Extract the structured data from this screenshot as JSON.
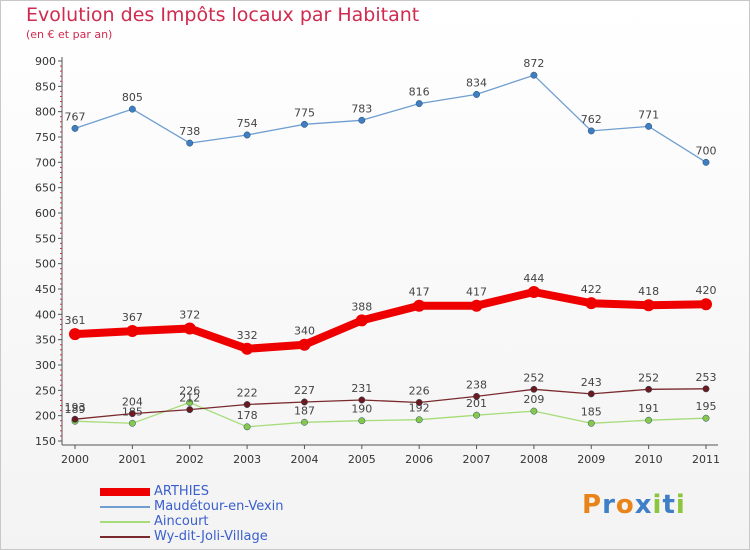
{
  "header": {
    "title": "Evolution des Impôts locaux par Habitant",
    "subtitle": "(en € et par an)"
  },
  "logo": {
    "letters": [
      "P",
      "r",
      "o",
      "x",
      "i",
      "t",
      "i"
    ],
    "colors": [
      "#e8841a",
      "#3f7fc8",
      "#e8841a",
      "#3f7fc8",
      "#8cc63f",
      "#3f7fc8",
      "#8cc63f"
    ]
  },
  "chart_data": {
    "type": "line",
    "title": "Evolution des Impôts locaux par Habitant",
    "subtitle": "(en € et par an)",
    "x": [
      "2000",
      "2001",
      "2002",
      "2003",
      "2004",
      "2005",
      "2006",
      "2007",
      "2008",
      "2009",
      "2010",
      "2011"
    ],
    "yticks": [
      150,
      200,
      250,
      300,
      350,
      400,
      450,
      500,
      550,
      600,
      650,
      700,
      750,
      800,
      850,
      900
    ],
    "ylim": [
      150,
      900
    ],
    "grid": false,
    "legend_position": "bottom-left",
    "series": [
      {
        "name": "ARTHIES",
        "values": [
          361,
          367,
          372,
          332,
          340,
          388,
          417,
          417,
          444,
          422,
          418,
          420
        ],
        "labels": [
          "361",
          "367",
          "372",
          "332",
          "340",
          "388",
          "417",
          "417",
          "444",
          "422",
          "418",
          "420"
        ],
        "color": "#ee0000",
        "marker_color": "#ee0000",
        "emphasis": true
      },
      {
        "name": "Maudétour-en-Vexin",
        "values": [
          767,
          805,
          738,
          754,
          775,
          783,
          816,
          834,
          872,
          762,
          771,
          700
        ],
        "labels": [
          "767",
          "805",
          "738",
          "754",
          "775",
          "783",
          "816",
          "834",
          "872",
          "762",
          "771",
          "700"
        ],
        "color": "#6f9ed0",
        "marker_color": "#3d7fc2",
        "emphasis": false
      },
      {
        "name": "Aincourt",
        "values": [
          189,
          185,
          226,
          178,
          187,
          190,
          192,
          201,
          209,
          185,
          191,
          195
        ],
        "labels": [
          "189",
          "185",
          "226",
          "178",
          "187",
          "190",
          "192",
          "201",
          "209",
          "185",
          "191",
          "195"
        ],
        "color": "#a6dc7a",
        "marker_color": "#86c84e",
        "emphasis": false
      },
      {
        "name": "Wy-dit-Joli-Village",
        "values": [
          193,
          204,
          212,
          222,
          227,
          231,
          226,
          238,
          252,
          243,
          252,
          253
        ],
        "labels": [
          "193",
          "204",
          "212",
          "222",
          "227",
          "231",
          "226",
          "238",
          "252",
          "243",
          "252",
          "253"
        ],
        "color": "#7a2a2e",
        "marker_color": "#6b1a1e",
        "emphasis": false
      }
    ]
  }
}
